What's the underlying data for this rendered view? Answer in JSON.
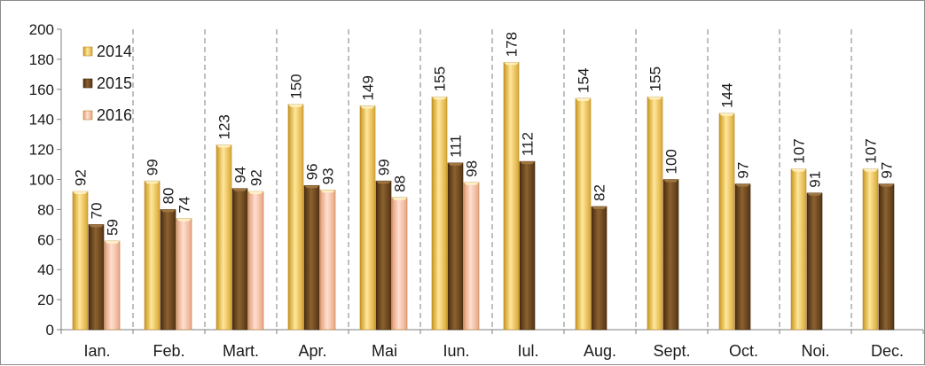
{
  "chart_data": {
    "type": "bar",
    "title": "",
    "xlabel": "",
    "ylabel": "",
    "ylim": [
      0,
      200
    ],
    "yticks": [
      0,
      20,
      40,
      60,
      80,
      100,
      120,
      140,
      160,
      180,
      200
    ],
    "categories": [
      "Ian.",
      "Feb.",
      "Mart.",
      "Apr.",
      "Mai",
      "Iun.",
      "Iul.",
      "Aug.",
      "Sept.",
      "Oct.",
      "Noi.",
      "Dec."
    ],
    "series": [
      {
        "name": "2014",
        "color": "#f0c85a",
        "values": [
          92,
          99,
          123,
          150,
          149,
          155,
          178,
          154,
          155,
          144,
          107,
          107
        ]
      },
      {
        "name": "2015",
        "color": "#6e4a20",
        "values": [
          70,
          80,
          94,
          96,
          99,
          111,
          112,
          82,
          100,
          97,
          91,
          97
        ]
      },
      {
        "name": "2016",
        "color": "#f2b89a",
        "values": [
          59,
          74,
          92,
          93,
          88,
          98,
          null,
          null,
          null,
          null,
          null,
          null
        ]
      }
    ],
    "grid": false,
    "category_separators": "dashed",
    "legend_position": "top-left"
  }
}
